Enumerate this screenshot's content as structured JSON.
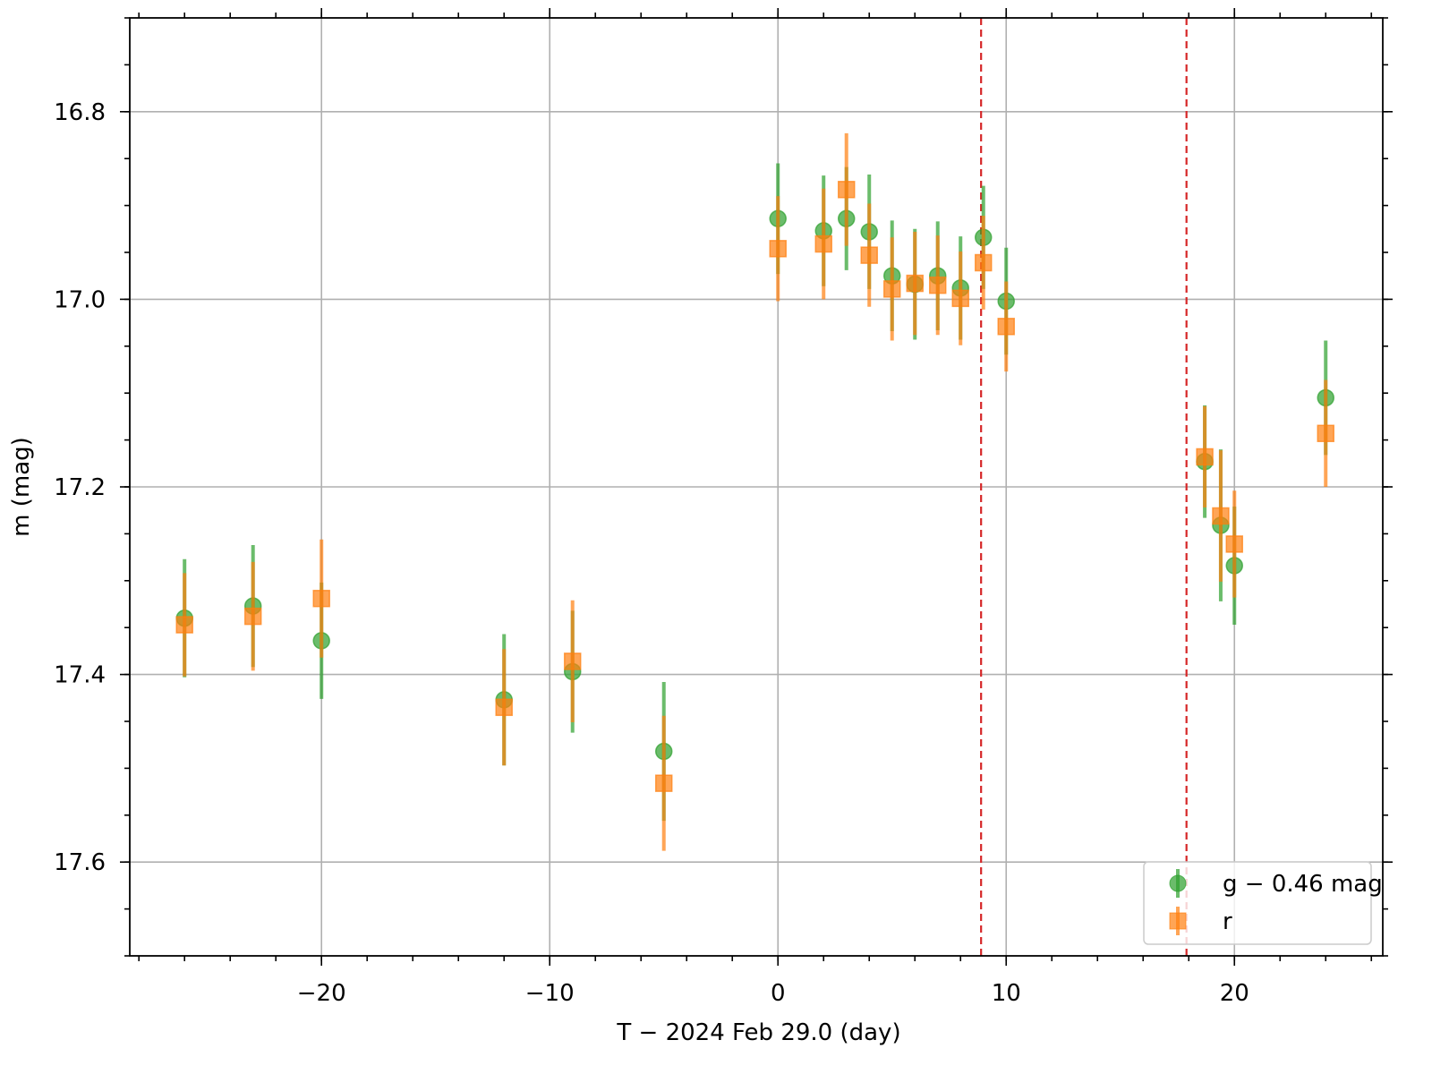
{
  "chart_data": {
    "type": "errorbar",
    "xlabel": "T − 2024 Feb 29.0 (day)",
    "ylabel": "m (mag)",
    "xlim": [
      -28.4,
      26.5
    ],
    "ylim": [
      17.7,
      16.7
    ],
    "xticks": [
      {
        "value": -20,
        "label": "−20"
      },
      {
        "value": -10,
        "label": "−10"
      },
      0,
      10,
      20
    ],
    "yticks": [
      16.8,
      {
        "value": 17.0,
        "label": "17.0"
      },
      17.2,
      17.4,
      17.6
    ],
    "xminor_step": 2,
    "yminor_step": 0.05,
    "grid": true,
    "legend": "lower right",
    "vlines": [
      8.9,
      17.9
    ],
    "vline_color": "#d62728",
    "series": [
      {
        "name": "g − 0.46 mag",
        "color": "#2ca02c",
        "marker": "circle",
        "x": [
          -26,
          -23,
          -20,
          -12,
          -9,
          -5,
          0,
          2,
          3,
          4,
          5,
          6,
          7,
          8,
          9,
          10,
          18.7,
          19.4,
          20,
          24
        ],
        "values": [
          17.34,
          17.327,
          17.364,
          17.427,
          17.397,
          17.482,
          16.914,
          16.927,
          16.914,
          16.928,
          16.975,
          16.984,
          16.975,
          16.988,
          16.934,
          17.002,
          17.173,
          17.241,
          17.284,
          17.105
        ],
        "errors": [
          0.063,
          0.065,
          0.062,
          0.07,
          0.065,
          0.074,
          0.059,
          0.059,
          0.055,
          0.061,
          0.059,
          0.059,
          0.058,
          0.055,
          0.055,
          0.057,
          0.06,
          0.081,
          0.063,
          0.061
        ]
      },
      {
        "name": "r",
        "color": "#ff7f0e",
        "marker": "square",
        "x": [
          -26,
          -23,
          -20,
          -12,
          -9,
          -5,
          0,
          2,
          3,
          4,
          5,
          6,
          7,
          8,
          9,
          10,
          18.7,
          19.4,
          20,
          24
        ],
        "values": [
          17.347,
          17.338,
          17.319,
          17.435,
          17.386,
          17.516,
          16.946,
          16.941,
          16.883,
          16.953,
          16.989,
          16.983,
          16.985,
          16.999,
          16.961,
          17.029,
          17.168,
          17.231,
          17.261,
          17.143
        ],
        "errors": [
          0.055,
          0.058,
          0.063,
          0.062,
          0.065,
          0.072,
          0.056,
          0.059,
          0.06,
          0.055,
          0.055,
          0.055,
          0.053,
          0.05,
          0.05,
          0.048,
          0.054,
          0.07,
          0.057,
          0.057
        ]
      }
    ]
  }
}
